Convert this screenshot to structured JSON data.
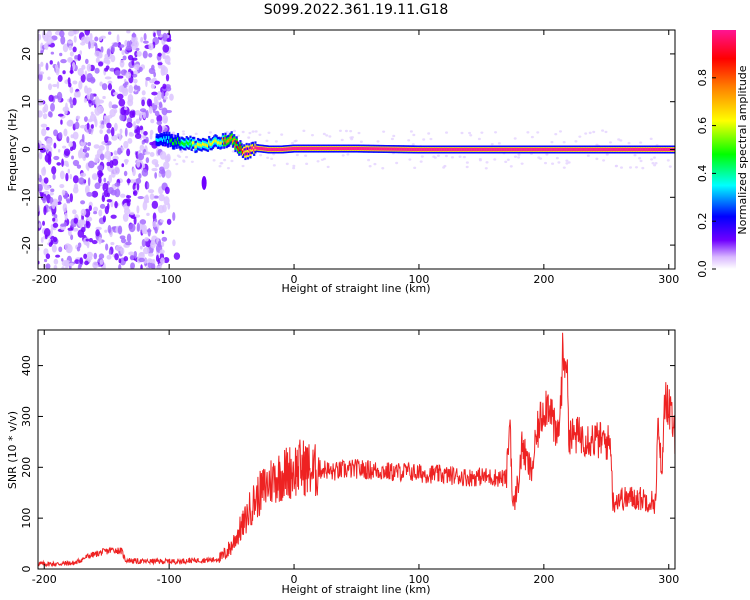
{
  "figure": {
    "title": "S099.2022.361.19.11.G18"
  },
  "chart_data": [
    {
      "type": "heatmap",
      "title": "S099.2022.361.19.11.G18",
      "xlabel": "Height of straight line (km)",
      "ylabel": "Frequency (Hz)",
      "xlim": [
        -205,
        305
      ],
      "ylim": [
        -25,
        25
      ],
      "x_ticks": [
        -200,
        -100,
        0,
        100,
        200,
        300
      ],
      "y_ticks": [
        -20,
        -10,
        0,
        10,
        20
      ],
      "colorbar": {
        "label": "Normalized spectral amplitude",
        "range": [
          0,
          1
        ],
        "ticks": [
          0.0,
          0.2,
          0.4,
          0.6,
          0.8
        ],
        "colormap": [
          "#ffffff",
          "#d9b8ff",
          "#7000ff",
          "#0000ff",
          "#00ffff",
          "#00ff00",
          "#ffff00",
          "#ff8000",
          "#ff0000",
          "#ff1493"
        ]
      },
      "features": {
        "noise_region_x": [
          -205,
          -100
        ],
        "carrier_line": {
          "x": [
            -110,
            -100,
            -90,
            -80,
            -70,
            -60,
            -50,
            -40,
            -30,
            -20,
            -10,
            0,
            50,
            100,
            150,
            200,
            250,
            300
          ],
          "frequency": [
            2.5,
            2.0,
            1.5,
            1.0,
            1.0,
            1.5,
            2.0,
            -0.5,
            0.3,
            0.0,
            0.0,
            0.2,
            0.2,
            0.0,
            0.0,
            0.0,
            0.0,
            0.0
          ],
          "amplitude": [
            0.3,
            0.35,
            0.4,
            0.5,
            0.55,
            0.6,
            0.7,
            0.9,
            0.92,
            0.95,
            0.95,
            0.95,
            0.95,
            0.95,
            0.95,
            0.95,
            0.95,
            0.95
          ]
        }
      },
      "grid": false
    },
    {
      "type": "line",
      "xlabel": "Height of straight line (km)",
      "ylabel": "SNR (10 * v/v)",
      "xlim": [
        -205,
        305
      ],
      "ylim": [
        0,
        470
      ],
      "x_ticks": [
        -200,
        -100,
        0,
        100,
        200,
        300
      ],
      "y_ticks": [
        0,
        100,
        200,
        300,
        400
      ],
      "color": "#ee2222",
      "grid": false,
      "series": [
        {
          "x": [
            -205,
            -190,
            -175,
            -165,
            -155,
            -145,
            -138,
            -135,
            -125,
            -110,
            -95,
            -80,
            -65,
            -58,
            -50,
            -45,
            -40,
            -35,
            -30,
            -25,
            -20,
            -15,
            -10,
            -5,
            0,
            5,
            10,
            15,
            20,
            25,
            30,
            40,
            50,
            60,
            70,
            80,
            90,
            100,
            110,
            120,
            130,
            140,
            150,
            160,
            170,
            173,
            175,
            176,
            180,
            183,
            185,
            190,
            195,
            200,
            205,
            210,
            213,
            215,
            218,
            220,
            222,
            225,
            230,
            240,
            250,
            254,
            255,
            257,
            260,
            265,
            270,
            280,
            290,
            291,
            292,
            295,
            297,
            300,
            305
          ],
          "y": [
            10,
            10,
            12,
            25,
            32,
            38,
            35,
            18,
            15,
            15,
            15,
            17,
            18,
            22,
            45,
            70,
            90,
            120,
            140,
            155,
            170,
            180,
            185,
            190,
            195,
            200,
            200,
            190,
            195,
            197,
            190,
            195,
            197,
            195,
            193,
            190,
            192,
            188,
            187,
            185,
            183,
            180,
            182,
            180,
            178,
            300,
            120,
            125,
            180,
            250,
            220,
            190,
            270,
            320,
            330,
            250,
            300,
            410,
            430,
            270,
            260,
            262,
            262,
            255,
            250,
            245,
            130,
            135,
            140,
            138,
            140,
            138,
            130,
            300,
            240,
            200,
            350,
            320,
            260
          ]
        }
      ]
    }
  ]
}
